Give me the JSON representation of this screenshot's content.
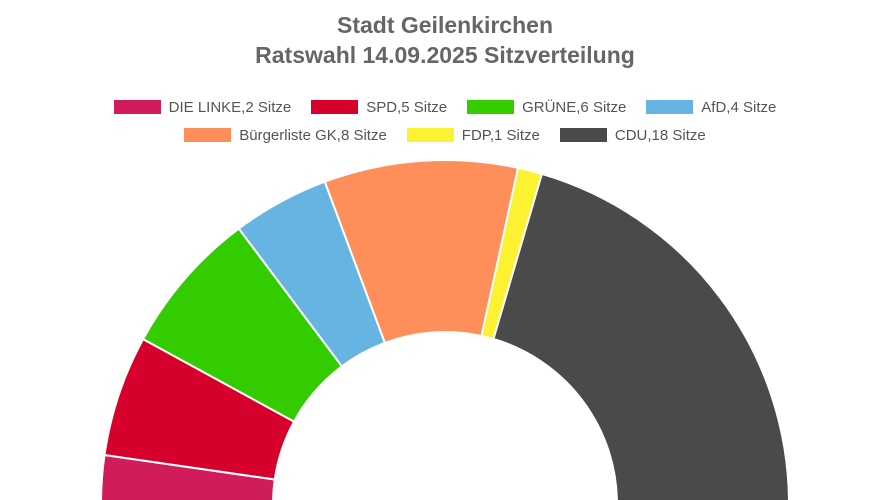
{
  "chart_data": {
    "type": "pie",
    "subtype": "parliament-semicircle",
    "title": "Stadt Geilenkirchen",
    "subtitle": "Ratswahl 14.09.2025 Sitzverteilung",
    "legend_position": "top",
    "series": [
      {
        "name": "DIE LINKE",
        "label": "DIE LINKE,2 Sitze",
        "value": 2,
        "color": "#D01C5A"
      },
      {
        "name": "SPD",
        "label": "SPD,5 Sitze",
        "value": 5,
        "color": "#D5002B"
      },
      {
        "name": "GRÜNE",
        "label": "GRÜNE,6 Sitze",
        "value": 6,
        "color": "#33CC00"
      },
      {
        "name": "AfD",
        "label": "AfD,4 Sitze",
        "value": 4,
        "color": "#66B4E1"
      },
      {
        "name": "Bürgerliste GK",
        "label": "Bürgerliste GK,8 Sitze",
        "value": 8,
        "color": "#FF8F5A"
      },
      {
        "name": "FDP",
        "label": "FDP,1 Sitze",
        "value": 1,
        "color": "#FCF232"
      },
      {
        "name": "CDU",
        "label": "CDU,18 Sitze",
        "value": 18,
        "color": "#4A4A4A"
      }
    ]
  }
}
